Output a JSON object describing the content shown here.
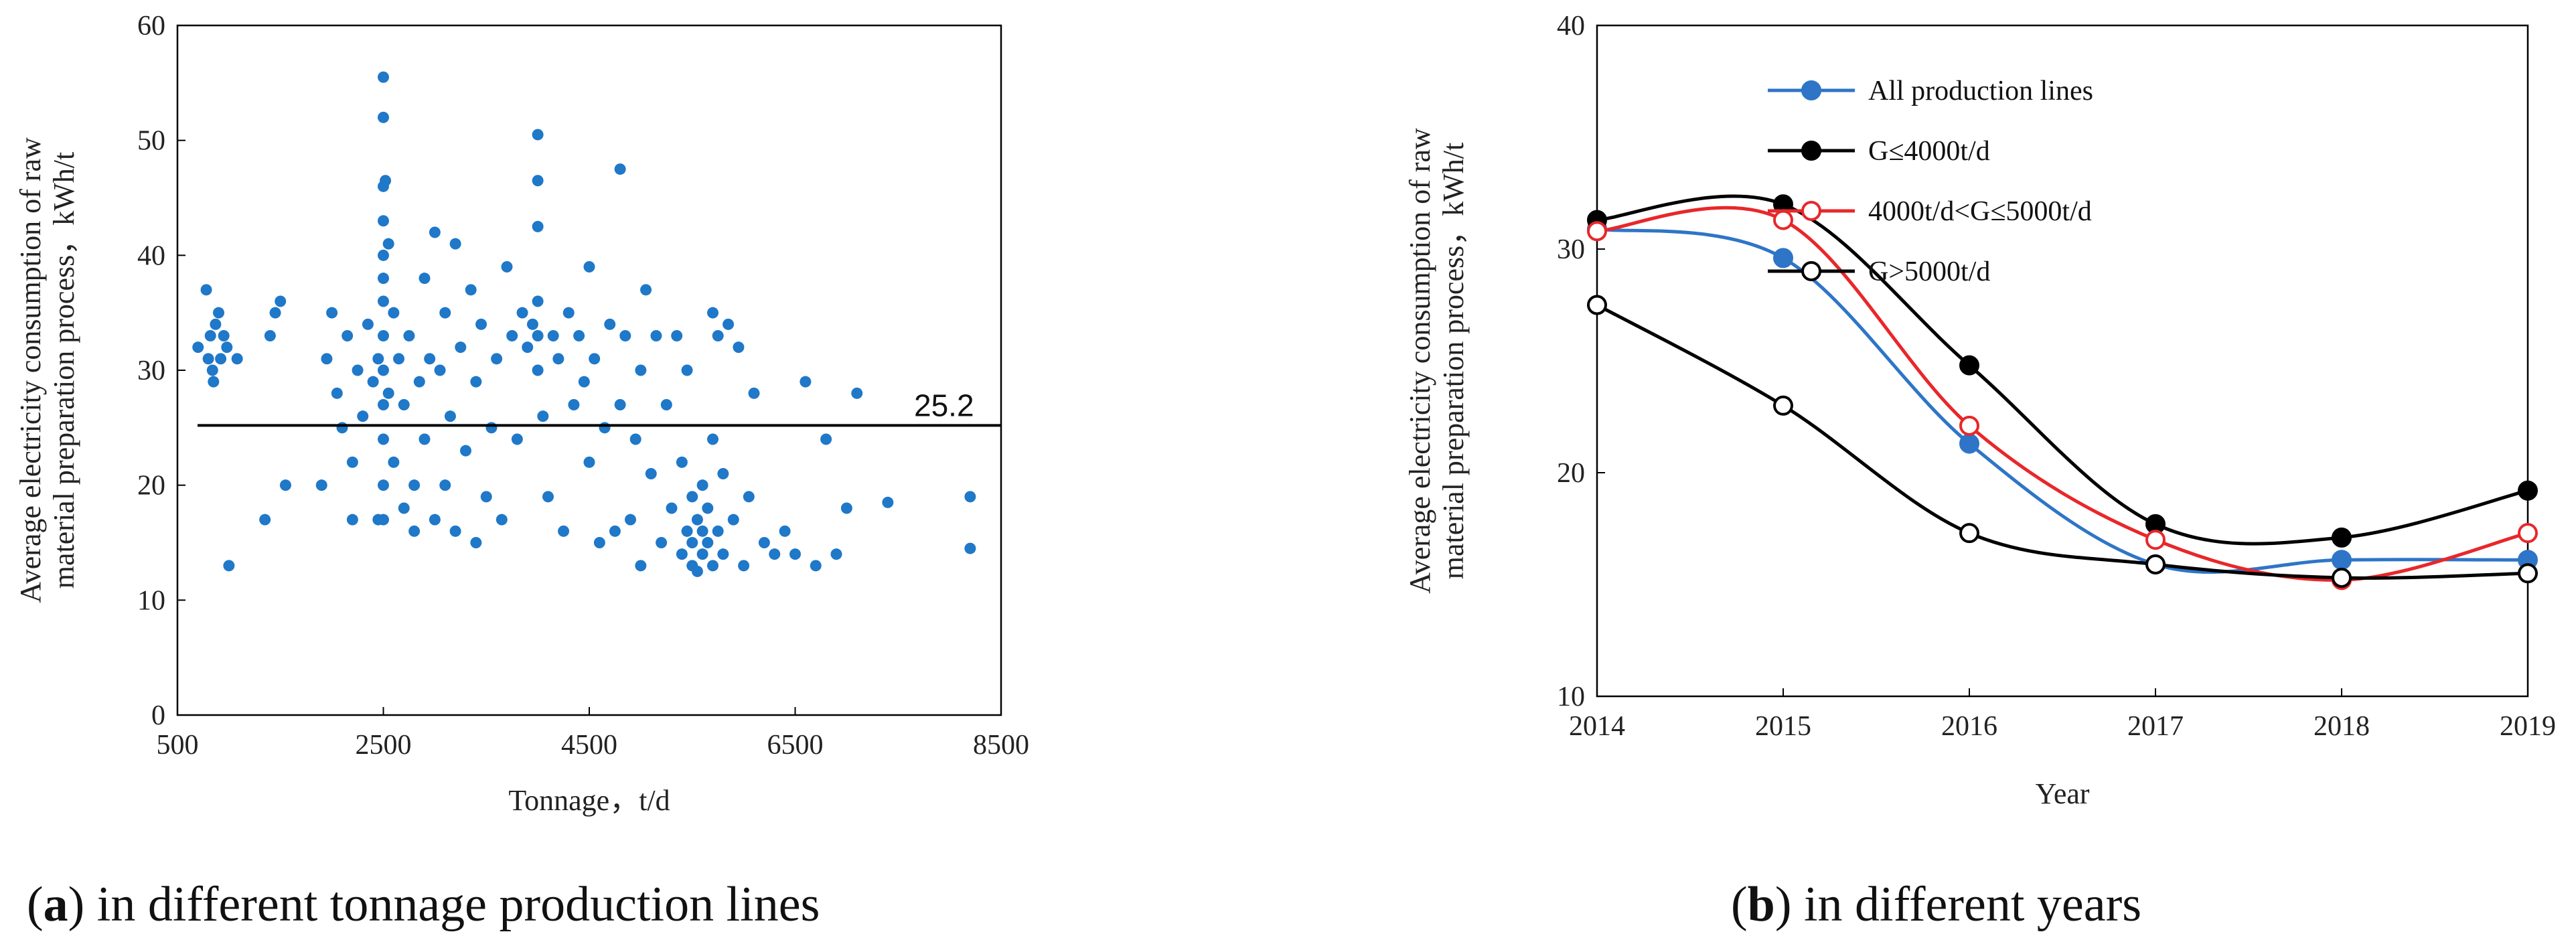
{
  "chart_data": [
    {
      "id": "a",
      "type": "scatter",
      "title": "",
      "xlabel": "Tonnage，t/d",
      "ylabel_lines": [
        "Average electricity consumption of raw",
        "material preparation process，kWh/t"
      ],
      "xlim": [
        500,
        8500
      ],
      "ylim": [
        0,
        60
      ],
      "xticks": [
        "500",
        "2500",
        "4500",
        "6500",
        "8500"
      ],
      "yticks": [
        "0",
        "10",
        "20",
        "30",
        "40",
        "50",
        "60"
      ],
      "reference_line": {
        "value": 25.2,
        "label": "25.2"
      },
      "color": "#1f78c8",
      "points": [
        [
          700,
          32
        ],
        [
          780,
          37
        ],
        [
          800,
          31
        ],
        [
          820,
          33
        ],
        [
          840,
          30
        ],
        [
          850,
          29
        ],
        [
          870,
          34
        ],
        [
          900,
          35
        ],
        [
          920,
          31
        ],
        [
          950,
          33
        ],
        [
          980,
          32
        ],
        [
          1000,
          13
        ],
        [
          1080,
          31
        ],
        [
          1350,
          17
        ],
        [
          1400,
          33
        ],
        [
          1450,
          35
        ],
        [
          1500,
          36
        ],
        [
          1550,
          20
        ],
        [
          1900,
          20
        ],
        [
          1950,
          31
        ],
        [
          2000,
          35
        ],
        [
          2050,
          28
        ],
        [
          2100,
          25
        ],
        [
          2150,
          33
        ],
        [
          2200,
          17
        ],
        [
          2200,
          22
        ],
        [
          2250,
          30
        ],
        [
          2300,
          26
        ],
        [
          2350,
          34
        ],
        [
          2400,
          29
        ],
        [
          2450,
          31
        ],
        [
          2450,
          17
        ],
        [
          2500,
          55.5
        ],
        [
          2500,
          52
        ],
        [
          2500,
          46
        ],
        [
          2500,
          43
        ],
        [
          2500,
          40
        ],
        [
          2500,
          38
        ],
        [
          2500,
          36
        ],
        [
          2500,
          33
        ],
        [
          2500,
          30
        ],
        [
          2500,
          27
        ],
        [
          2500,
          24
        ],
        [
          2500,
          20
        ],
        [
          2500,
          17
        ],
        [
          2520,
          46.5
        ],
        [
          2550,
          41
        ],
        [
          2550,
          28
        ],
        [
          2600,
          35
        ],
        [
          2600,
          22
        ],
        [
          2650,
          31
        ],
        [
          2700,
          18
        ],
        [
          2700,
          27
        ],
        [
          2750,
          33
        ],
        [
          2800,
          16
        ],
        [
          2800,
          20
        ],
        [
          2850,
          29
        ],
        [
          2900,
          38
        ],
        [
          2900,
          24
        ],
        [
          2950,
          31
        ],
        [
          3000,
          17
        ],
        [
          3000,
          42
        ],
        [
          3050,
          30
        ],
        [
          3100,
          35
        ],
        [
          3100,
          20
        ],
        [
          3150,
          26
        ],
        [
          3200,
          41
        ],
        [
          3200,
          16
        ],
        [
          3250,
          32
        ],
        [
          3300,
          23
        ],
        [
          3350,
          37
        ],
        [
          3400,
          29
        ],
        [
          3400,
          15
        ],
        [
          3450,
          34
        ],
        [
          3500,
          19
        ],
        [
          3550,
          25
        ],
        [
          3600,
          31
        ],
        [
          3650,
          17
        ],
        [
          3700,
          39
        ],
        [
          3750,
          33
        ],
        [
          3800,
          24
        ],
        [
          3850,
          35
        ],
        [
          3900,
          32
        ],
        [
          3950,
          34
        ],
        [
          4000,
          50.5
        ],
        [
          4000,
          46.5
        ],
        [
          4000,
          42.5
        ],
        [
          4000,
          36
        ],
        [
          4000,
          33
        ],
        [
          4000,
          30
        ],
        [
          4050,
          26
        ],
        [
          4100,
          19
        ],
        [
          4150,
          33
        ],
        [
          4200,
          31
        ],
        [
          4250,
          16
        ],
        [
          4300,
          35
        ],
        [
          4350,
          27
        ],
        [
          4400,
          33
        ],
        [
          4450,
          29
        ],
        [
          4500,
          39
        ],
        [
          4500,
          22
        ],
        [
          4550,
          31
        ],
        [
          4600,
          15
        ],
        [
          4650,
          25
        ],
        [
          4700,
          34
        ],
        [
          4750,
          16
        ],
        [
          4800,
          47.5
        ],
        [
          4800,
          27
        ],
        [
          4850,
          33
        ],
        [
          4900,
          17
        ],
        [
          4950,
          24
        ],
        [
          5000,
          13
        ],
        [
          5000,
          30
        ],
        [
          5050,
          37
        ],
        [
          5100,
          21
        ],
        [
          5150,
          33
        ],
        [
          5200,
          15
        ],
        [
          5250,
          27
        ],
        [
          5300,
          18
        ],
        [
          5350,
          33
        ],
        [
          5400,
          14
        ],
        [
          5400,
          22
        ],
        [
          5450,
          16
        ],
        [
          5450,
          30
        ],
        [
          5500,
          15
        ],
        [
          5500,
          19
        ],
        [
          5500,
          13
        ],
        [
          5550,
          17
        ],
        [
          5550,
          12.5
        ],
        [
          5600,
          14
        ],
        [
          5600,
          16
        ],
        [
          5600,
          20
        ],
        [
          5650,
          15
        ],
        [
          5650,
          18
        ],
        [
          5700,
          13
        ],
        [
          5700,
          35
        ],
        [
          5700,
          24
        ],
        [
          5750,
          16
        ],
        [
          5750,
          33
        ],
        [
          5800,
          14
        ],
        [
          5800,
          21
        ],
        [
          5850,
          34
        ],
        [
          5900,
          17
        ],
        [
          5950,
          32
        ],
        [
          6000,
          13
        ],
        [
          6050,
          19
        ],
        [
          6100,
          28
        ],
        [
          6200,
          15
        ],
        [
          6300,
          14
        ],
        [
          6400,
          16
        ],
        [
          6500,
          14
        ],
        [
          6600,
          29
        ],
        [
          6700,
          13
        ],
        [
          6800,
          24
        ],
        [
          6900,
          14
        ],
        [
          7000,
          18
        ],
        [
          7100,
          28
        ],
        [
          7400,
          18.5
        ],
        [
          8200,
          19
        ],
        [
          8200,
          14.5
        ]
      ]
    },
    {
      "id": "b",
      "type": "line",
      "title": "",
      "xlabel": "Year",
      "ylabel_lines": [
        "Average electricity consumption of raw",
        "material preparation process，kWh/t"
      ],
      "x": [
        2014,
        2015,
        2016,
        2017,
        2018,
        2019
      ],
      "xticks": [
        "2014",
        "2015",
        "2016",
        "2017",
        "2018",
        "2019"
      ],
      "ylim": [
        10,
        40
      ],
      "yticks": [
        "10",
        "20",
        "30",
        "40"
      ],
      "series": [
        {
          "name": "All production lines",
          "color": "#2e75c7",
          "marker": "filled",
          "values": [
            30.9,
            29.6,
            21.3,
            15.9,
            16.1,
            16.1
          ]
        },
        {
          "name": "G≤4000t/d",
          "color": "#000000",
          "marker": "filled",
          "values": [
            31.3,
            32.0,
            24.8,
            17.7,
            17.1,
            19.2
          ]
        },
        {
          "name": "4000t/d<G≤5000t/d",
          "color": "#e8272a",
          "marker": "open",
          "values": [
            30.8,
            31.3,
            22.1,
            17.0,
            15.2,
            17.3
          ]
        },
        {
          "name": "G>5000t/d",
          "color": "#000000",
          "marker": "open",
          "values": [
            27.5,
            23.0,
            17.3,
            15.9,
            15.3,
            15.5
          ]
        }
      ]
    }
  ],
  "captions": {
    "a_label": "a",
    "a_text": ") in different tonnage production lines",
    "b_label": "b",
    "b_text": ") in different years"
  }
}
